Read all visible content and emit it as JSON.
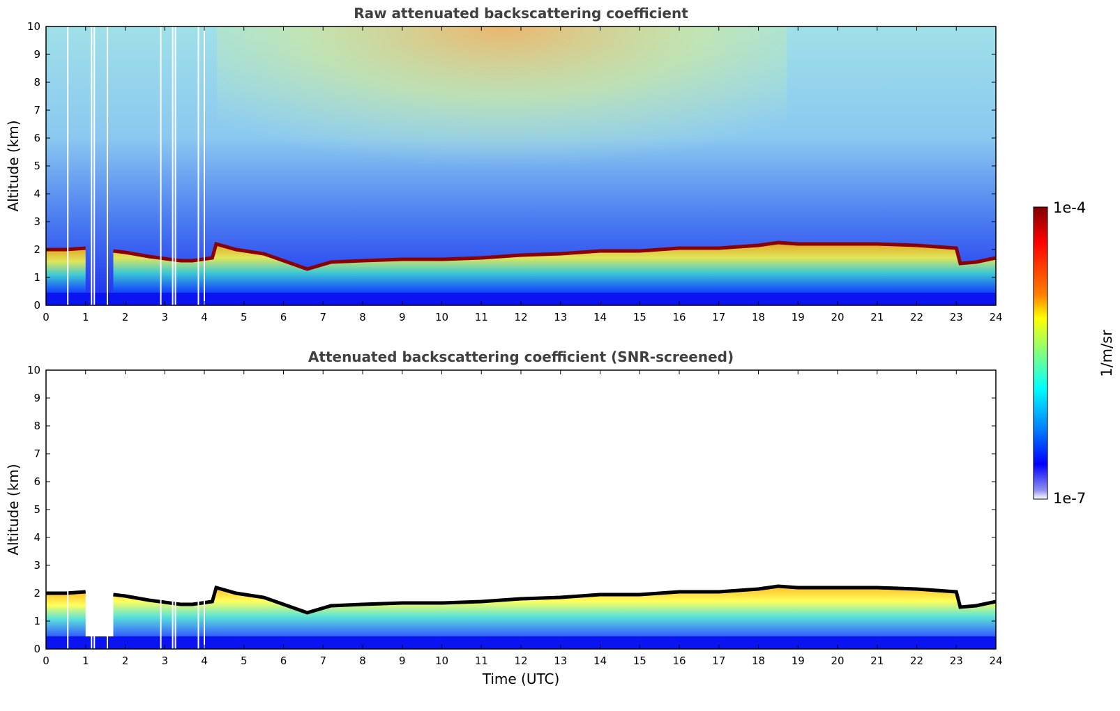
{
  "chart_data": [
    {
      "type": "heatmap",
      "title": "Raw attenuated backscattering coefficient",
      "xlabel": "",
      "ylabel": "Altitude (km)",
      "xlim": [
        0,
        24
      ],
      "ylim": [
        0,
        10
      ],
      "x_ticks": [
        "0",
        "1",
        "2",
        "3",
        "4",
        "5",
        "6",
        "7",
        "8",
        "9",
        "10",
        "11",
        "12",
        "13",
        "14",
        "15",
        "16",
        "17",
        "18",
        "19",
        "20",
        "21",
        "22",
        "23",
        "24"
      ],
      "y_ticks": [
        "0",
        "1",
        "2",
        "3",
        "4",
        "5",
        "6",
        "7",
        "8",
        "9",
        "10"
      ],
      "screened": false,
      "cloud_top_km": {
        "x": [
          0.0,
          0.5,
          1.0,
          1.1,
          1.7,
          2.0,
          2.6,
          3.4,
          3.7,
          4.2,
          4.3,
          4.8,
          5.5,
          6.6,
          7.2,
          8.0,
          9.0,
          10.0,
          11.0,
          12.0,
          13.0,
          14.0,
          15.0,
          16.0,
          17.0,
          18.0,
          18.5,
          19.0,
          20.0,
          21.0,
          22.0,
          23.0,
          23.1,
          23.5,
          24.0
        ],
        "y": [
          2.0,
          2.0,
          2.05,
          null,
          1.95,
          1.9,
          1.75,
          1.6,
          1.6,
          1.7,
          2.2,
          2.0,
          1.85,
          1.3,
          1.55,
          1.6,
          1.65,
          1.65,
          1.7,
          1.8,
          1.85,
          1.95,
          1.95,
          2.05,
          2.05,
          2.15,
          2.25,
          2.2,
          2.2,
          2.2,
          2.15,
          2.05,
          1.5,
          1.55,
          1.7
        ]
      },
      "gaps_utc": [
        0.55,
        1.15,
        1.22,
        1.55,
        2.9,
        3.2,
        3.27,
        3.85,
        4.0
      ]
    },
    {
      "type": "heatmap",
      "title": "Attenuated backscattering coefficient (SNR-screened)",
      "xlabel": "Time (UTC)",
      "ylabel": "Altitude (km)",
      "xlim": [
        0,
        24
      ],
      "ylim": [
        0,
        10
      ],
      "x_ticks": [
        "0",
        "1",
        "2",
        "3",
        "4",
        "5",
        "6",
        "7",
        "8",
        "9",
        "10",
        "11",
        "12",
        "13",
        "14",
        "15",
        "16",
        "17",
        "18",
        "19",
        "20",
        "21",
        "22",
        "23",
        "24"
      ],
      "y_ticks": [
        "0",
        "1",
        "2",
        "3",
        "4",
        "5",
        "6",
        "7",
        "8",
        "9",
        "10"
      ],
      "screened": true,
      "cloud_top_km": {
        "x": [
          0.0,
          0.5,
          1.0,
          1.1,
          1.7,
          2.0,
          2.6,
          3.4,
          3.7,
          4.2,
          4.3,
          4.8,
          5.5,
          6.6,
          7.2,
          8.0,
          9.0,
          10.0,
          11.0,
          12.0,
          13.0,
          14.0,
          15.0,
          16.0,
          17.0,
          18.0,
          18.5,
          19.0,
          20.0,
          21.0,
          22.0,
          23.0,
          23.1,
          23.5,
          24.0
        ],
        "y": [
          2.0,
          2.0,
          2.05,
          null,
          1.95,
          1.9,
          1.75,
          1.6,
          1.6,
          1.7,
          2.2,
          2.0,
          1.85,
          1.3,
          1.55,
          1.6,
          1.65,
          1.65,
          1.7,
          1.8,
          1.85,
          1.95,
          1.95,
          2.05,
          2.05,
          2.15,
          2.25,
          2.2,
          2.2,
          2.2,
          2.15,
          2.05,
          1.5,
          1.55,
          1.7
        ]
      },
      "gaps_utc": [
        0.55,
        1.15,
        1.22,
        1.55,
        2.9,
        3.2,
        3.27,
        3.85,
        4.0
      ]
    }
  ],
  "colorbar": {
    "label": "1/m/sr",
    "max_label": "1e-4",
    "min_label": "1e-7",
    "scale": "log",
    "colormap": [
      "#7f0000",
      "#ff0000",
      "#ff8000",
      "#ffff00",
      "#80ff80",
      "#00ffff",
      "#0080ff",
      "#0000ff",
      "#ffffff"
    ]
  }
}
